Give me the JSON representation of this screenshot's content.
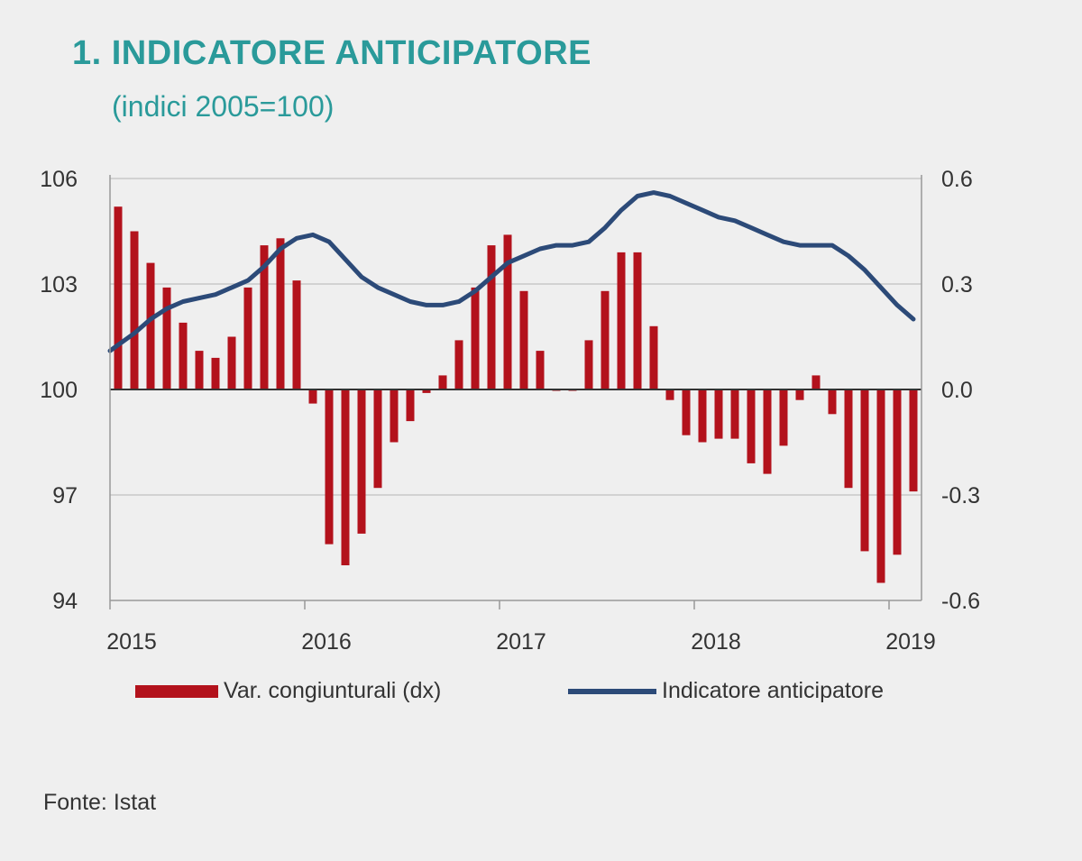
{
  "title": "1. INDICATORE ANTICIPATORE",
  "subtitle": "(indici 2005=100)",
  "source": "Fonte: Istat",
  "colors": {
    "bars": "#b3121c",
    "line": "#2c4a78",
    "title": "#2a9a9a",
    "grid": "#c8c8c8"
  },
  "chart_data": {
    "type": "bar",
    "title": "1. INDICATORE ANTICIPATORE",
    "subtitle": "(indici 2005=100)",
    "x_tick_labels": [
      "2015",
      "2016",
      "2017",
      "2018",
      "2019"
    ],
    "y_left": {
      "ylim": [
        94,
        106
      ],
      "ticks": [
        "94",
        "97",
        "100",
        "103",
        "106"
      ]
    },
    "y_right": {
      "ylim": [
        -0.6,
        0.6
      ],
      "ticks": [
        "-0.6",
        "-0.3",
        "0.0",
        "0.3",
        "0.6"
      ]
    },
    "grid": true,
    "legend_position": "bottom",
    "series": [
      {
        "name": "Var. congiunturali (dx)",
        "type": "bar",
        "axis": "right",
        "values": [
          0.52,
          0.45,
          0.36,
          0.29,
          0.19,
          0.11,
          0.09,
          0.15,
          0.29,
          0.41,
          0.43,
          0.31,
          -0.04,
          -0.44,
          -0.5,
          -0.41,
          -0.28,
          -0.15,
          -0.09,
          -0.01,
          0.04,
          0.14,
          0.29,
          0.41,
          0.44,
          0.28,
          0.11,
          0.0,
          0.0,
          0.14,
          0.28,
          0.39,
          0.39,
          0.18,
          -0.03,
          -0.13,
          -0.15,
          -0.14,
          -0.14,
          -0.21,
          -0.24,
          -0.16,
          -0.03,
          0.04,
          -0.07,
          -0.28,
          -0.46,
          -0.55,
          -0.47,
          -0.29
        ]
      },
      {
        "name": "Indicatore anticipatore",
        "type": "line",
        "axis": "left",
        "values": [
          101.1,
          101.6,
          102.0,
          102.3,
          102.5,
          102.6,
          102.7,
          102.9,
          103.1,
          103.5,
          104.0,
          104.3,
          104.4,
          104.2,
          103.7,
          103.2,
          102.9,
          102.7,
          102.5,
          102.4,
          102.4,
          102.5,
          102.8,
          103.2,
          103.6,
          103.8,
          104.0,
          104.1,
          104.1,
          104.2,
          104.6,
          105.1,
          105.5,
          105.6,
          105.5,
          105.3,
          105.1,
          104.9,
          104.8,
          104.6,
          104.4,
          104.2,
          104.1,
          104.1,
          104.1,
          103.8,
          103.4,
          102.9,
          102.4,
          102.0
        ]
      }
    ]
  }
}
